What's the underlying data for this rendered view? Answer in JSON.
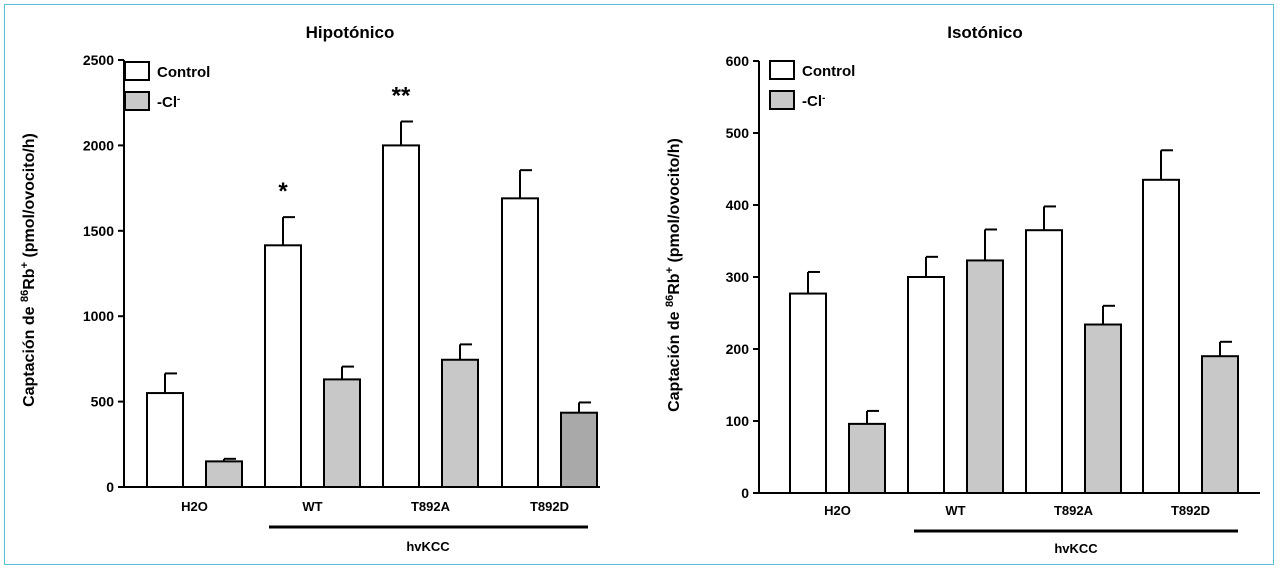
{
  "colors": {
    "control_fill": "#ffffff",
    "cl_fill": "#c8c8c8",
    "cl_fill_dark": "#a9a9a9",
    "frame": "#5cc0d6",
    "ink": "#000000"
  },
  "y_label_parts": [
    "Captación de ",
    "86",
    "Rb",
    "+",
    " (pmol/ovocito/h)"
  ],
  "legend": {
    "control": "Control",
    "cl_main": "-Cl",
    "cl_sup": "-"
  },
  "group_label": "hvKCC",
  "chart_data": [
    {
      "type": "bar",
      "title": "Hipotónico",
      "categories": [
        "H2O",
        "WT",
        "T892A",
        "T892D"
      ],
      "ylim": [
        0,
        2500
      ],
      "yticks": [
        0,
        500,
        1000,
        1500,
        2000,
        2500
      ],
      "series": [
        {
          "name": "Control",
          "values": [
            550,
            1415,
            2000,
            1690
          ],
          "errors": [
            115,
            165,
            140,
            165
          ]
        },
        {
          "name": "-Cl-",
          "values": [
            150,
            630,
            745,
            435
          ],
          "errors": [
            15,
            75,
            90,
            60
          ]
        }
      ],
      "annotations": [
        {
          "category": "WT",
          "text": "*"
        },
        {
          "category": "T892A",
          "text": "**"
        }
      ],
      "legend_position": "top-left"
    },
    {
      "type": "bar",
      "title": "Isotónico",
      "categories": [
        "H2O",
        "WT",
        "T892A",
        "T892D"
      ],
      "ylim": [
        0,
        600
      ],
      "yticks": [
        0,
        100,
        200,
        300,
        400,
        500,
        600
      ],
      "series": [
        {
          "name": "Control",
          "values": [
            277,
            300,
            365,
            435
          ],
          "errors": [
            30,
            28,
            33,
            41
          ]
        },
        {
          "name": "-Cl-",
          "values": [
            96,
            323,
            234,
            190
          ],
          "errors": [
            18,
            43,
            26,
            20
          ]
        }
      ],
      "annotations": [],
      "legend_position": "top-left"
    }
  ]
}
